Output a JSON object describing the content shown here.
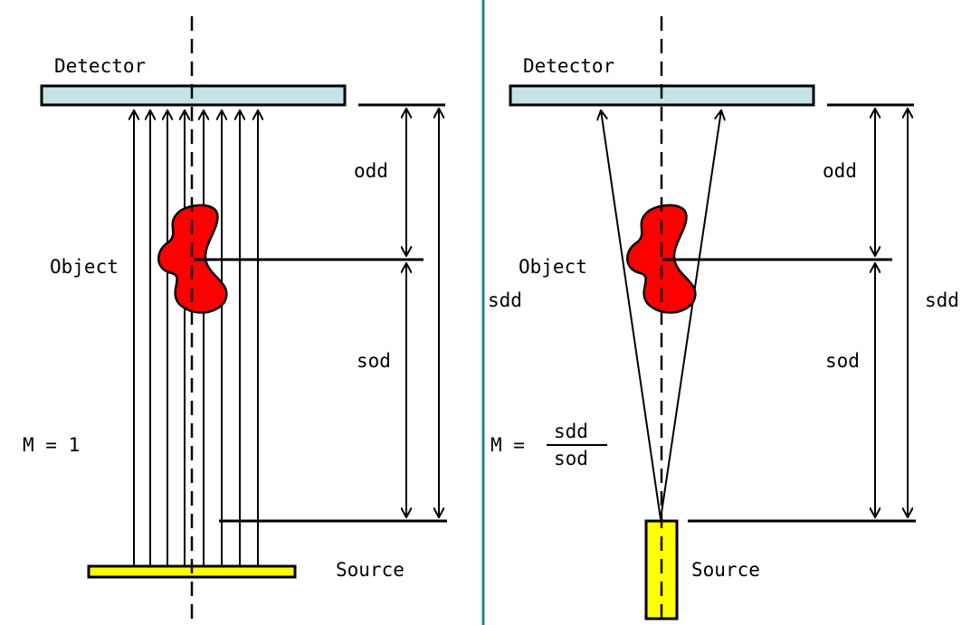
{
  "colors": {
    "detector_fill": "#c5e3e6",
    "source_fill": "#ffff00",
    "object_fill": "#ff0000",
    "divider": "#1a8a8a"
  },
  "left": {
    "detector_label": "Detector",
    "object_label": "Object",
    "source_label": "Source",
    "odd_label": "odd",
    "sod_label": "sod",
    "sdd_label": "sdd",
    "magnification": "M = 1"
  },
  "right": {
    "detector_label": "Detector",
    "object_label": "Object",
    "source_label": "Source",
    "odd_label": "odd",
    "sod_label": "sod",
    "sdd_label": "sdd",
    "magnification_prefix": "M =",
    "magnification_numerator": "sdd",
    "magnification_denominator": "sod"
  }
}
